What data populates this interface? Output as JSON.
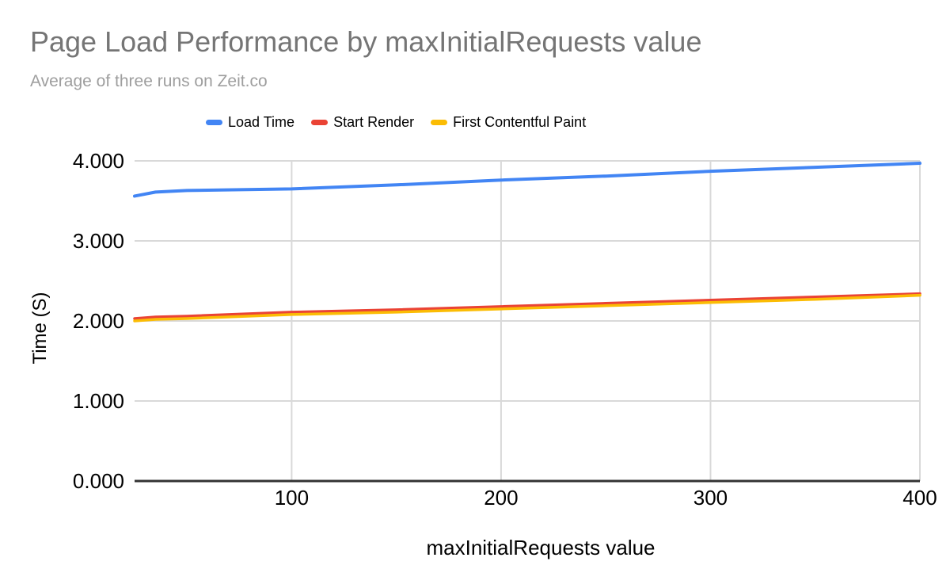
{
  "chart_data": {
    "type": "line",
    "title": "Page Load Performance by maxInitialRequests value",
    "subtitle": "Average of three runs on Zeit.co",
    "xlabel": "maxInitialRequests value",
    "ylabel": "Time (S)",
    "x": [
      25,
      35,
      50,
      100,
      150,
      200,
      250,
      300,
      350,
      400
    ],
    "series": [
      {
        "name": "Load Time",
        "color": "#4285f4",
        "stroke_width": 4,
        "values": [
          3.56,
          3.61,
          3.63,
          3.65,
          3.7,
          3.76,
          3.81,
          3.87,
          3.92,
          3.97
        ]
      },
      {
        "name": "Start Render",
        "color": "#ea4335",
        "stroke_width": 3.5,
        "values": [
          2.03,
          2.05,
          2.06,
          2.11,
          2.14,
          2.18,
          2.22,
          2.26,
          2.3,
          2.34
        ]
      },
      {
        "name": "First Contentful Paint",
        "color": "#fbbc04",
        "stroke_width": 3.5,
        "values": [
          2.0,
          2.02,
          2.03,
          2.08,
          2.11,
          2.15,
          2.19,
          2.23,
          2.27,
          2.32
        ]
      }
    ],
    "xlim": [
      25,
      400
    ],
    "ylim": [
      0,
      4
    ],
    "x_ticks": [
      100,
      200,
      300,
      400
    ],
    "x_tick_labels": [
      "100",
      "200",
      "300",
      "400"
    ],
    "y_ticks": [
      0,
      1,
      2,
      3,
      4
    ],
    "y_tick_labels": [
      "0.000",
      "1.000",
      "2.000",
      "3.000",
      "4.000"
    ],
    "grid": true,
    "legend_position": "top"
  },
  "style": {
    "title_color": "#757575",
    "subtitle_color": "#9e9e9e",
    "grid_color": "#d9d9d9",
    "axis_line_color": "#333333",
    "tick_text_color": "#000000"
  }
}
